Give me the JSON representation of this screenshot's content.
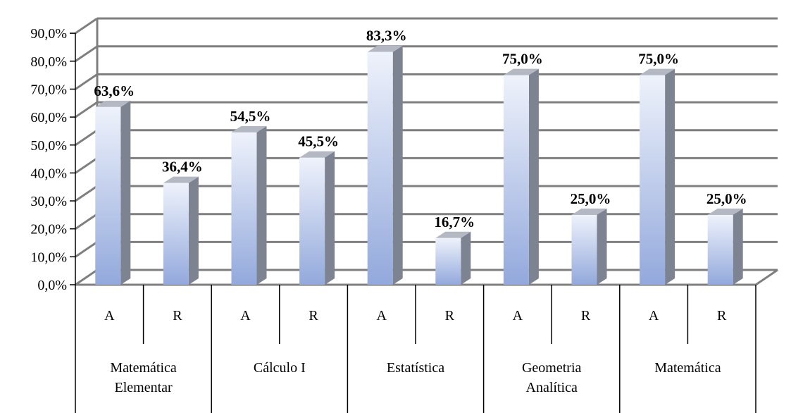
{
  "chart_data": {
    "type": "bar",
    "title": "",
    "xlabel": "",
    "ylabel": "",
    "ylim": [
      0,
      90
    ],
    "ytick_step": 10,
    "y_tick_labels": [
      "0,0%",
      "10,0%",
      "20,0%",
      "30,0%",
      "40,0%",
      "50,0%",
      "60,0%",
      "70,0%",
      "80,0%",
      "90,0%"
    ],
    "grid": true,
    "style": "3d",
    "groups": [
      "Matemática Elementar",
      "Cálculo I",
      "Estatística",
      "Geometria Analítica",
      "Matemática"
    ],
    "subcategories": [
      "A",
      "R"
    ],
    "values": [
      [
        63.6,
        36.4
      ],
      [
        54.5,
        45.5
      ],
      [
        83.3,
        16.7
      ],
      [
        75.0,
        25.0
      ],
      [
        75.0,
        25.0
      ]
    ],
    "data_labels": [
      [
        "63,6%",
        "36,4%"
      ],
      [
        "54,5%",
        "45,5%"
      ],
      [
        "83,3%",
        "16,7%"
      ],
      [
        "75,0%",
        "25,0%"
      ],
      [
        "75,0%",
        "25,0%"
      ]
    ],
    "colors": {
      "bar_top": "#eef2fb",
      "bar_bottom": "#93a9dc",
      "bar_side": "#7d8391",
      "bar_cap": "#b4b8c2",
      "grid": "#7f7f7f",
      "axis": "#000000"
    }
  },
  "category_axis": {
    "group_labels": [
      [
        "Matemática",
        "Elementar"
      ],
      [
        "Cálculo I"
      ],
      [
        "Estatística"
      ],
      [
        "Geometria",
        "Analítica"
      ],
      [
        "Matemática"
      ]
    ]
  }
}
